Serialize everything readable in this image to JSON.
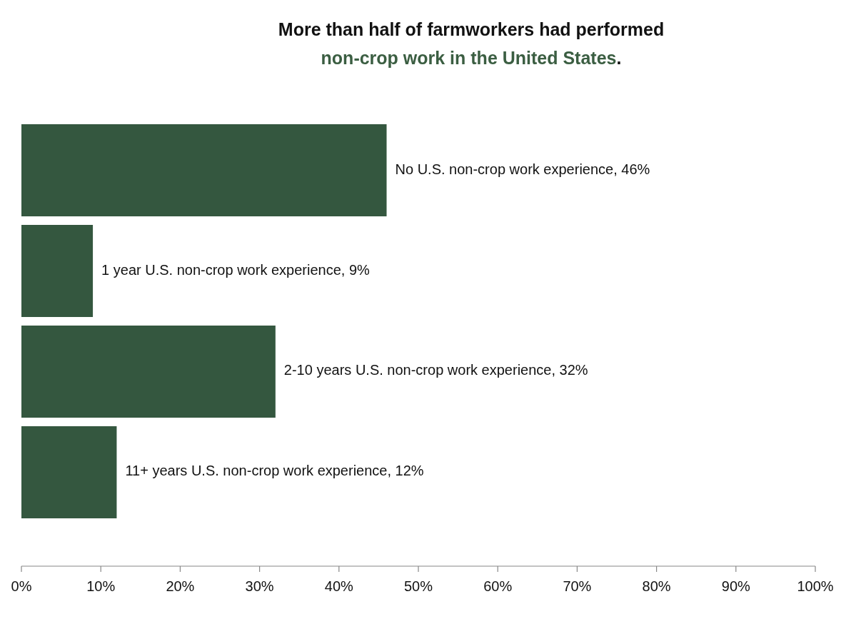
{
  "chart_data": {
    "type": "bar",
    "orientation": "horizontal",
    "title": "More than half of farmworkers had performed non-crop work in the United States.",
    "categories": [
      null,
      null,
      null,
      null
    ],
    "values": [
      46,
      9,
      32,
      12
    ],
    "value_labels": [
      "No U.S. non-crop work experience, 46%",
      "1 year U.S. non-crop work experience, 9%",
      "2-10 years U.S. non-crop work experience, 32%",
      "11+ years U.S. non-crop work experience, 12%"
    ],
    "color": "#34573f",
    "xlim": [
      0,
      100
    ],
    "xticks": [
      {
        "value": 0,
        "label": "0%"
      },
      {
        "value": 10,
        "label": "10%"
      },
      {
        "value": 20,
        "label": "20%"
      },
      {
        "value": 30,
        "label": "30%"
      },
      {
        "value": 40,
        "label": "40%"
      },
      {
        "value": 50,
        "label": "50%"
      },
      {
        "value": 60,
        "label": "60%"
      },
      {
        "value": 70,
        "label": "70%"
      },
      {
        "value": 80,
        "label": "80%"
      },
      {
        "value": 90,
        "label": "90%"
      },
      {
        "value": 100,
        "label": "100%"
      }
    ],
    "grid": false
  }
}
